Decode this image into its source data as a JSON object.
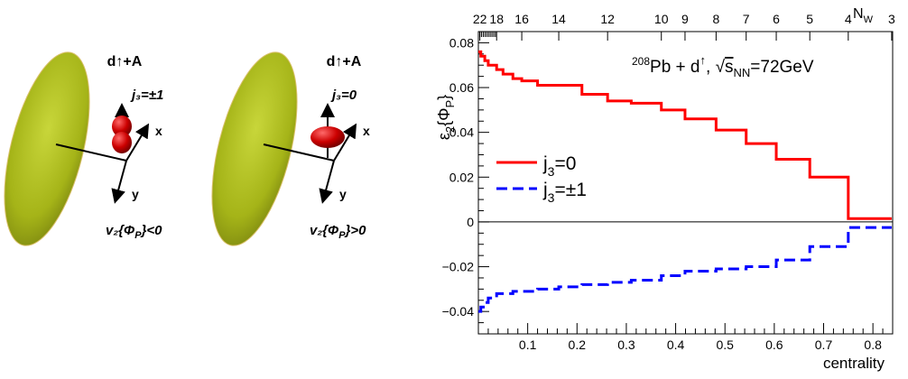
{
  "illustration": {
    "panels": [
      {
        "title": "d↑+A",
        "j3": "j₃=±1",
        "v2": "v₂{Φ",
        "v2_sub": "P",
        "v2_rel": "}<0"
      },
      {
        "title": "d↑+A",
        "j3": "j₃=0",
        "v2": "v₂{Φ",
        "v2_sub": "P",
        "v2_rel": "}>0"
      }
    ],
    "axis_x": "x",
    "axis_y": "y",
    "colors": {
      "disk": "#a5b418",
      "deuteron": "#cc0000"
    }
  },
  "chart_data": {
    "type": "line",
    "title": "208Pb + d↑, √sNN=72GeV",
    "annotation": {
      "pre": "208",
      "main": "Pb + d",
      "arrow": "↑",
      "sep": ", ",
      "sqrt": "√",
      "s": "s",
      "s_sub": "NN",
      "rest": "=72GeV"
    },
    "xlabel": "centrality",
    "ylabel": {
      "main": "ε",
      "sub": "2",
      "brace": "{Φ",
      "sub2": "P",
      "close": "}"
    },
    "xlim": [
      0,
      0.84
    ],
    "ylim": [
      -0.05,
      0.085
    ],
    "x_ticks": [
      "0.1",
      "0.2",
      "0.3",
      "0.4",
      "0.5",
      "0.6",
      "0.7",
      "0.8"
    ],
    "x_tick_values": [
      0.1,
      0.2,
      0.3,
      0.4,
      0.5,
      0.6,
      0.7,
      0.8
    ],
    "y_ticks": [
      "−0.04",
      "−0.02",
      "0",
      "0.02",
      "0.04",
      "0.06",
      "0.08"
    ],
    "y_tick_values": [
      -0.04,
      -0.02,
      0,
      0.02,
      0.04,
      0.06,
      0.08
    ],
    "top_axis": {
      "label": "N",
      "label_sub": "W",
      "ticks": [
        "22",
        "18",
        "16",
        "14",
        "12",
        "10",
        "9",
        "8",
        "7",
        "6",
        "5",
        "4",
        "3"
      ],
      "tick_positions": [
        0.003,
        0.037,
        0.088,
        0.163,
        0.262,
        0.371,
        0.419,
        0.482,
        0.543,
        0.604,
        0.672,
        0.75,
        0.838
      ]
    },
    "series": [
      {
        "name": "j3=0",
        "legend": {
          "main": "j",
          "sub": "3",
          "rest": "=0"
        },
        "color": "#ff0000",
        "style": "solid",
        "x": [
          0,
          0.005,
          0.013,
          0.02,
          0.037,
          0.05,
          0.07,
          0.088,
          0.12,
          0.163,
          0.21,
          0.262,
          0.31,
          0.371,
          0.419,
          0.482,
          0.543,
          0.604,
          0.672,
          0.75,
          0.838
        ],
        "y": [
          0.076,
          0.074,
          0.072,
          0.07,
          0.068,
          0.066,
          0.064,
          0.063,
          0.061,
          0.061,
          0.057,
          0.054,
          0.053,
          0.05,
          0.046,
          0.041,
          0.035,
          0.028,
          0.02,
          0.0015,
          0.0015
        ]
      },
      {
        "name": "j3=±1",
        "legend": {
          "main": "j",
          "sub": "3",
          "rest": "=±1"
        },
        "color": "#0000ff",
        "style": "dashed",
        "x": [
          0,
          0.005,
          0.013,
          0.02,
          0.037,
          0.05,
          0.07,
          0.088,
          0.12,
          0.163,
          0.21,
          0.262,
          0.31,
          0.371,
          0.419,
          0.482,
          0.543,
          0.604,
          0.672,
          0.75,
          0.838
        ],
        "y": [
          -0.04,
          -0.038,
          -0.036,
          -0.034,
          -0.032,
          -0.032,
          -0.031,
          -0.031,
          -0.03,
          -0.029,
          -0.028,
          -0.027,
          -0.026,
          -0.024,
          -0.022,
          -0.021,
          -0.02,
          -0.017,
          -0.011,
          -0.0025,
          -0.0025
        ]
      }
    ],
    "grid": false,
    "legend_position": "center-left"
  }
}
